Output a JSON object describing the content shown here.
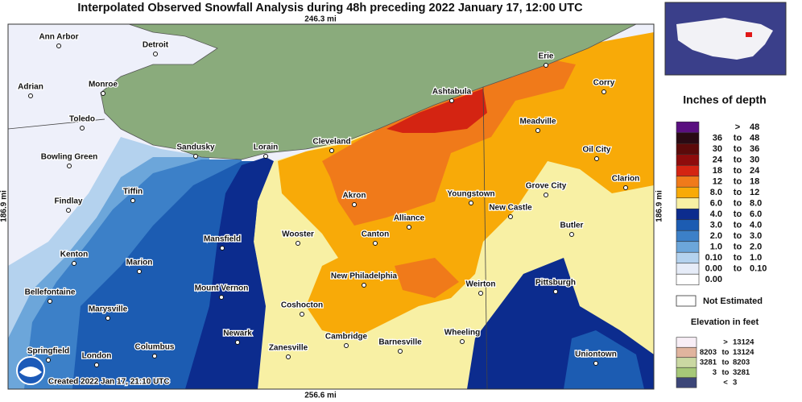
{
  "header": {
    "title": "Interpolated Observed Snowfall Analysis during 48h preceding 2022 January 17, 12:00 UTC"
  },
  "map": {
    "scale_top": "246.3 mi",
    "scale_bottom": "256.6 mi",
    "scale_left": "186.9 mi",
    "scale_right": "186.9 mi",
    "created": "Created 2022 Jan 17, 21:10 UTC",
    "cities": [
      "Ann Arbor",
      "Detroit",
      "Adrian",
      "Monroe",
      "Toledo",
      "Bowling Green",
      "Sandusky",
      "Lorain",
      "Cleveland",
      "Ashtabula",
      "Erie",
      "Corry",
      "Meadville",
      "Oil City",
      "Clarion",
      "Grove City",
      "Youngstown",
      "New Castle",
      "Butler",
      "Akron",
      "Alliance",
      "Canton",
      "Wooster",
      "Mansfield",
      "Tiffin",
      "Findlay",
      "Kenton",
      "Marion",
      "Bellefontaine",
      "Marysville",
      "Mount Vernon",
      "New Philadelphia",
      "Weirton",
      "Pittsburgh",
      "Coshocton",
      "Newark",
      "Columbus",
      "Springfield",
      "London",
      "Zanesville",
      "Cambridge",
      "Barnesville",
      "Wheeling",
      "Uniontown"
    ]
  },
  "legend": {
    "title": "Inches of depth",
    "rows": [
      {
        "color": "#5a0f80",
        "sep": ">",
        "high": "48"
      },
      {
        "color": "#2a0a14",
        "low": "36",
        "sep": "to",
        "high": "48"
      },
      {
        "color": "#5c0a0a",
        "low": "30",
        "sep": "to",
        "high": "36"
      },
      {
        "color": "#8e0c0c",
        "low": "24",
        "sep": "to",
        "high": "30"
      },
      {
        "color": "#d42412",
        "low": "18",
        "sep": "to",
        "high": "24"
      },
      {
        "color": "#f07a1a",
        "low": "12",
        "sep": "to",
        "high": "18"
      },
      {
        "color": "#f8aa08",
        "low": "8.0",
        "sep": "to",
        "high": "12"
      },
      {
        "color": "#f8f0a4",
        "low": "6.0",
        "sep": "to",
        "high": "8.0"
      },
      {
        "color": "#0c2c8e",
        "low": "4.0",
        "sep": "to",
        "high": "6.0"
      },
      {
        "color": "#1c5cb2",
        "low": "3.0",
        "sep": "to",
        "high": "4.0"
      },
      {
        "color": "#3c80c8",
        "low": "2.0",
        "sep": "to",
        "high": "3.0"
      },
      {
        "color": "#6ca6da",
        "low": "1.0",
        "sep": "to",
        "high": "2.0"
      },
      {
        "color": "#b4d2ee",
        "low": "0.10",
        "sep": "to",
        "high": "1.0"
      },
      {
        "color": "#e6ecf8",
        "low": "0.00",
        "sep": "to",
        "high": "0.10"
      },
      {
        "color": "#ffffff",
        "low": "0.00"
      }
    ],
    "not_estimated": {
      "color": "#ffffff",
      "label": "Not Estimated"
    },
    "elevation": {
      "title": "Elevation in feet",
      "rows": [
        {
          "color": "#f8eef6",
          "sep": ">",
          "high": "13124"
        },
        {
          "color": "#e0b49e",
          "low": "8203",
          "sep": "to",
          "high": "13124"
        },
        {
          "color": "#cad8a2",
          "low": "3281",
          "sep": "to",
          "high": "8203"
        },
        {
          "color": "#a6c878",
          "low": "3",
          "sep": "to",
          "high": "3281"
        },
        {
          "color": "#3c4678",
          "sep": "<",
          "high": "3"
        }
      ]
    }
  }
}
